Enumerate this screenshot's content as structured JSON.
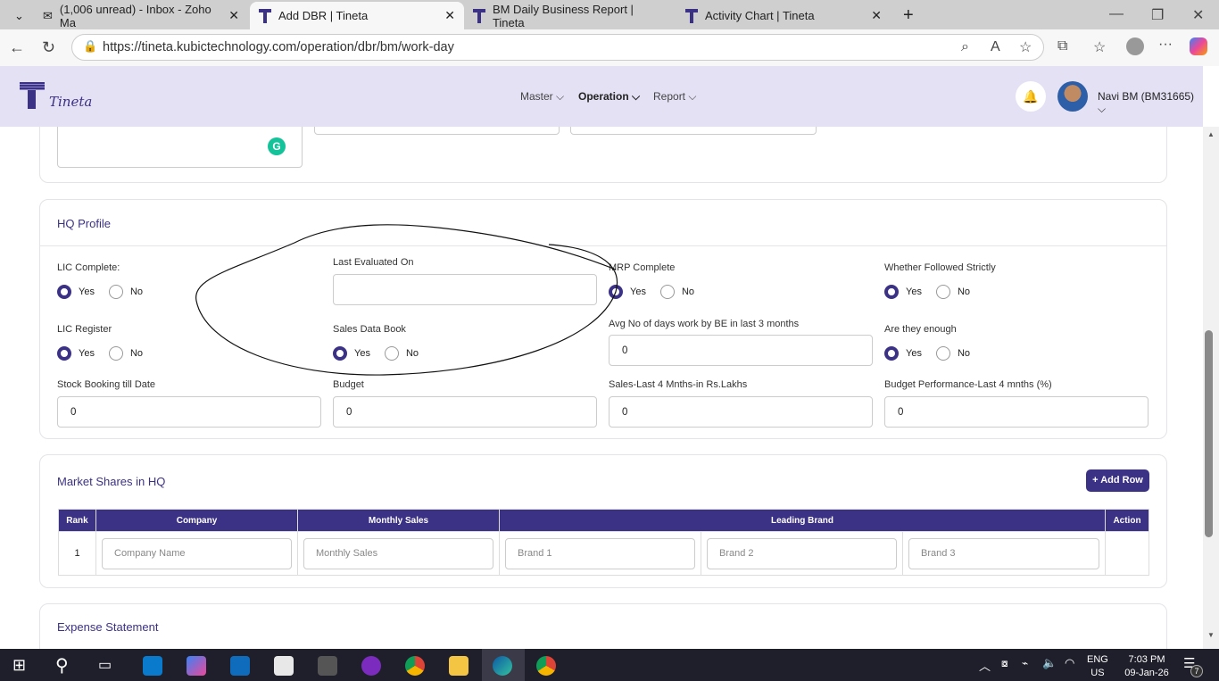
{
  "browser": {
    "tabs": [
      {
        "label": "(1,006 unread) - Inbox - Zoho Ma",
        "active": false
      },
      {
        "label": "Add DBR | Tineta",
        "active": true
      },
      {
        "label": "BM Daily Business Report | Tineta",
        "active": false
      },
      {
        "label": "Activity Chart | Tineta",
        "active": false
      }
    ],
    "url": "https://tineta.kubictechnology.com/operation/dbr/bm/work-day"
  },
  "app": {
    "brand": "Tineta",
    "nav": [
      "Master",
      "Operation",
      "Report"
    ],
    "active_nav": "Operation",
    "user": "Navi BM (BM31665)",
    "accent": "#3b3185"
  },
  "hq_profile": {
    "title": "HQ Profile",
    "lic_complete": {
      "label": "LIC Complete:",
      "value": "Yes"
    },
    "last_evaluated_on": {
      "label": "Last Evaluated On",
      "value": ""
    },
    "mrp_complete": {
      "label": "MRP Complete",
      "value": "Yes"
    },
    "followed_strictly": {
      "label": "Whether Followed Strictly",
      "value": "Yes"
    },
    "lic_register": {
      "label": "LIC Register",
      "value": "Yes"
    },
    "sales_data_book": {
      "label": "Sales Data Book",
      "value": "Yes"
    },
    "avg_days": {
      "label": "Avg No of days work by BE in last 3 months",
      "value": "0"
    },
    "enough": {
      "label": "Are they enough",
      "value": "Yes"
    },
    "stock_booking": {
      "label": "Stock Booking till Date",
      "value": "0"
    },
    "budget": {
      "label": "Budget",
      "value": "0"
    },
    "sales_last4": {
      "label": "Sales-Last 4 Mnths-in Rs.Lakhs",
      "value": "0"
    },
    "budget_perf": {
      "label": "Budget Performance-Last 4 mnths (%)",
      "value": "0"
    },
    "yes": "Yes",
    "no": "No"
  },
  "market_shares": {
    "title": "Market Shares in HQ",
    "add_row": "+ Add Row",
    "headers": [
      "Rank",
      "Company",
      "Monthly Sales",
      "Leading Brand",
      "Action"
    ],
    "rows": [
      {
        "rank": "1",
        "company_ph": "Company Name",
        "sales_ph": "Monthly Sales",
        "brand1_ph": "Brand 1",
        "brand2_ph": "Brand 2",
        "brand3_ph": "Brand 3"
      }
    ]
  },
  "expense": {
    "title": "Expense Statement"
  },
  "taskbar": {
    "lang1": "ENG",
    "lang2": "US",
    "time": "7:03 PM",
    "date": "09-Jan-26",
    "notifications": "7"
  }
}
